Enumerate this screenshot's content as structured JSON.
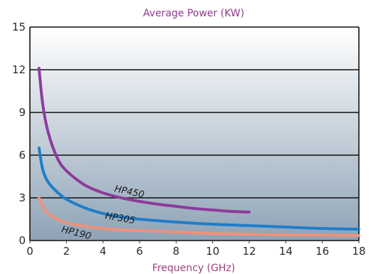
{
  "chart_data": {
    "type": "line",
    "title": "Average Power (KW)",
    "xlabel": "Frequency (GHz)",
    "ylabel": "",
    "xlim": [
      0,
      18
    ],
    "ylim": [
      0,
      15
    ],
    "xticks": [
      "0",
      "2",
      "4",
      "6",
      "8",
      "10",
      "12",
      "14",
      "16",
      "18"
    ],
    "yticks": [
      "0",
      "3",
      "6",
      "9",
      "12",
      "15"
    ],
    "grid": "horizontal",
    "legend": "none (series labelled inline)",
    "colors": {
      "title": "#8e3a8e",
      "xlabel": "#a0407a",
      "HP450": "#8e3a9e",
      "HP305": "#1f7ec8",
      "HP190": "#f0917a",
      "background_top": "#ffffff",
      "background_bottom": "#8ea3b6"
    },
    "series": [
      {
        "name": "HP450",
        "x": [
          0.5,
          0.7,
          1,
          1.5,
          2,
          3,
          4,
          5,
          6,
          7,
          8,
          9,
          10,
          11,
          12
        ],
        "y": [
          12.1,
          9.6,
          7.6,
          5.8,
          4.9,
          3.9,
          3.35,
          3.0,
          2.75,
          2.55,
          2.4,
          2.25,
          2.15,
          2.05,
          2.0
        ]
      },
      {
        "name": "HP305",
        "x": [
          0.5,
          0.7,
          1,
          1.5,
          2,
          3,
          4,
          5,
          6,
          8,
          10,
          12,
          14,
          16,
          18
        ],
        "y": [
          6.5,
          5.0,
          4.1,
          3.4,
          2.9,
          2.3,
          1.9,
          1.65,
          1.5,
          1.3,
          1.15,
          1.05,
          0.95,
          0.85,
          0.8
        ]
      },
      {
        "name": "HP190",
        "x": [
          0.5,
          0.7,
          1,
          1.5,
          2,
          3,
          4,
          5,
          6,
          8,
          10,
          12,
          14,
          16,
          18
        ],
        "y": [
          3.0,
          2.4,
          1.9,
          1.5,
          1.25,
          1.0,
          0.85,
          0.75,
          0.7,
          0.6,
          0.5,
          0.45,
          0.4,
          0.38,
          0.35
        ]
      }
    ]
  }
}
